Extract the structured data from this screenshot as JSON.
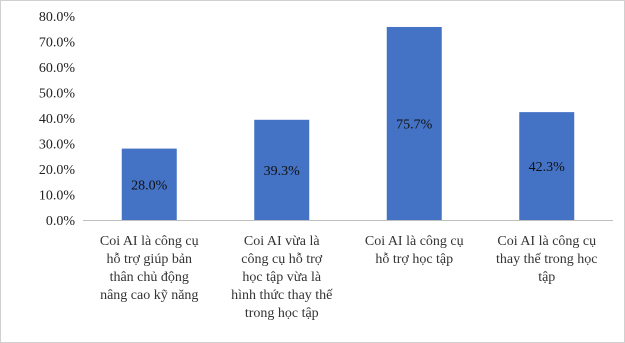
{
  "chart_data": {
    "type": "bar",
    "title": "",
    "xlabel": "",
    "ylabel": "",
    "ylim": [
      0,
      80
    ],
    "y_ticks": [
      "0.0%",
      "10.0%",
      "20.0%",
      "30.0%",
      "40.0%",
      "50.0%",
      "60.0%",
      "70.0%",
      "80.0%"
    ],
    "categories": [
      [
        "Coi AI là công cụ",
        "hỗ trợ giúp bản",
        "thân chủ động",
        "nâng cao kỹ năng"
      ],
      [
        "Coi AI vừa là",
        "công cụ hỗ trợ",
        "học tập vừa là",
        "hình thức thay thế",
        "trong học tập"
      ],
      [
        "Coi AI là công cụ",
        "hỗ trợ học tập"
      ],
      [
        "Coi AI là công cụ",
        "thay thế trong học",
        "tập"
      ]
    ],
    "values": [
      28.0,
      39.3,
      75.7,
      42.3
    ],
    "data_labels": [
      "28.0%",
      "39.3%",
      "75.7%",
      "42.3%"
    ],
    "bar_color": "#4472C4",
    "grid": false,
    "legend": "none"
  }
}
